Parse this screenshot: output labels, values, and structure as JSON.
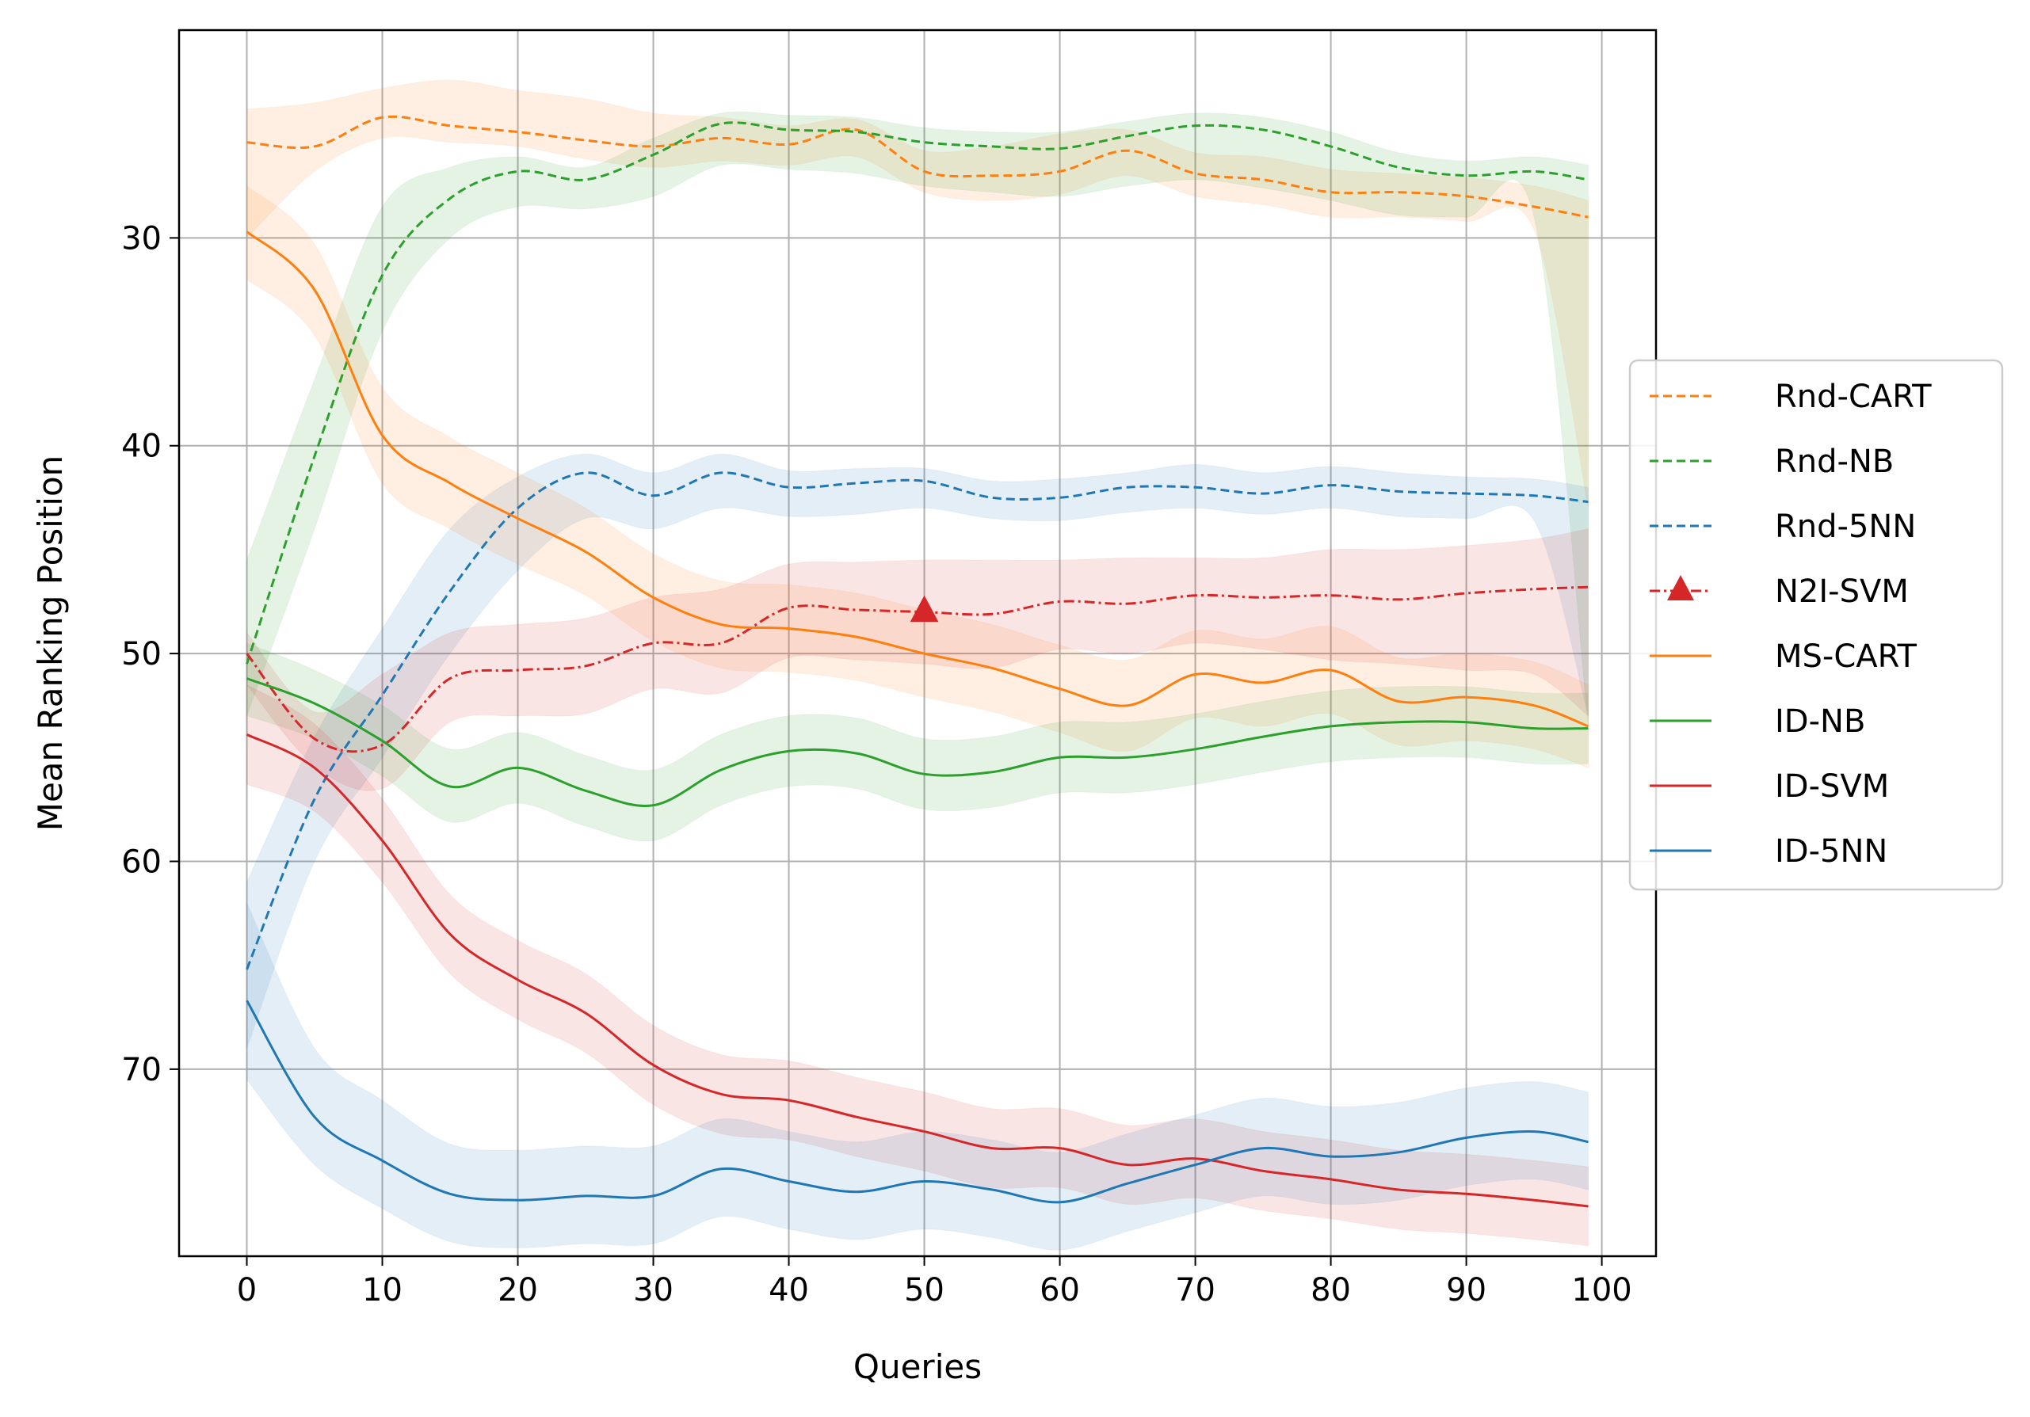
{
  "chart_data": {
    "type": "line",
    "title": "",
    "xlabel": "Queries",
    "ylabel": "Mean Ranking Position",
    "xlim": [
      -5,
      104
    ],
    "ylim": [
      79,
      20
    ],
    "y_inverted": true,
    "xticks": [
      0,
      10,
      20,
      30,
      40,
      50,
      60,
      70,
      80,
      90,
      100
    ],
    "yticks": [
      30,
      40,
      50,
      60,
      70
    ],
    "grid": true,
    "legend_position": "outside-right",
    "x": [
      0,
      5,
      10,
      15,
      20,
      25,
      30,
      35,
      40,
      45,
      50,
      55,
      60,
      65,
      70,
      75,
      80,
      85,
      90,
      95,
      99
    ],
    "series": [
      {
        "name": "Rnd-CART",
        "color": "#ff7f0e",
        "style": "dashed",
        "values": [
          25.4,
          25.6,
          24.2,
          24.6,
          24.9,
          25.3,
          25.6,
          25.2,
          25.5,
          24.8,
          26.8,
          27.0,
          26.8,
          25.8,
          26.9,
          27.2,
          27.8,
          27.8,
          28.0,
          28.5,
          29.0
        ],
        "band_lower": [
          23.8,
          23.5,
          22.8,
          22.4,
          22.9,
          23.3,
          24.0,
          24.2,
          24.6,
          24.3,
          25.8,
          25.6,
          25.0,
          24.8,
          25.9,
          26.1,
          26.7,
          26.9,
          27.1,
          27.5,
          28.2
        ],
        "band_upper": [
          30.0,
          26.8,
          25.2,
          25.4,
          25.6,
          26.2,
          26.6,
          26.3,
          26.5,
          26.1,
          27.8,
          28.2,
          27.9,
          27.0,
          28.0,
          28.4,
          29.0,
          29.0,
          29.2,
          29.6,
          43.0
        ]
      },
      {
        "name": "Rnd-NB",
        "color": "#2ca02c",
        "style": "dashed",
        "values": [
          50.5,
          40.5,
          31.8,
          28.1,
          26.8,
          27.2,
          26.0,
          24.5,
          24.8,
          24.9,
          25.4,
          25.6,
          25.7,
          25.1,
          24.6,
          24.8,
          25.6,
          26.6,
          27.0,
          26.8,
          27.2
        ],
        "band_lower": [
          45.5,
          36.8,
          28.5,
          26.6,
          26.1,
          26.6,
          25.2,
          24.0,
          24.1,
          24.2,
          24.7,
          24.9,
          24.9,
          24.4,
          24.0,
          24.2,
          24.9,
          25.9,
          26.3,
          26.1,
          26.5
        ],
        "band_upper": [
          53.0,
          44.0,
          34.5,
          30.0,
          28.5,
          28.6,
          28.0,
          26.5,
          26.7,
          26.9,
          27.5,
          27.8,
          28.0,
          27.5,
          27.2,
          27.6,
          28.2,
          28.9,
          29.0,
          29.0,
          53.5
        ]
      },
      {
        "name": "Rnd-5NN",
        "color": "#1f77b4",
        "style": "dashed",
        "values": [
          65.2,
          57.0,
          52.0,
          47.0,
          43.0,
          41.3,
          42.4,
          41.3,
          42.0,
          41.8,
          41.7,
          42.5,
          42.5,
          42.0,
          42.0,
          42.3,
          41.9,
          42.2,
          42.3,
          42.4,
          42.7
        ],
        "band_lower": [
          61.0,
          54.0,
          48.8,
          44.0,
          41.5,
          40.4,
          41.3,
          40.4,
          41.2,
          41.1,
          41.1,
          41.7,
          41.6,
          41.3,
          40.9,
          41.3,
          41.0,
          41.3,
          41.5,
          41.6,
          42.0
        ],
        "band_upper": [
          69.0,
          60.0,
          55.0,
          50.0,
          46.0,
          43.5,
          44.0,
          43.0,
          43.4,
          43.3,
          43.0,
          43.5,
          43.6,
          43.2,
          43.0,
          43.3,
          43.0,
          43.4,
          43.5,
          43.6,
          53.0
        ]
      },
      {
        "name": "N2I-SVM",
        "color": "#d62728",
        "style": "dashdot",
        "marker": "triangle",
        "marker_at": 50,
        "values": [
          50.0,
          54.1,
          54.4,
          51.2,
          50.8,
          50.6,
          49.5,
          49.5,
          47.8,
          47.9,
          48.0,
          48.1,
          47.5,
          47.6,
          47.2,
          47.3,
          47.2,
          47.4,
          47.1,
          46.9,
          46.8
        ],
        "band_lower": [
          49.0,
          52.8,
          51.0,
          49.0,
          48.6,
          48.3,
          47.3,
          46.9,
          45.7,
          45.6,
          45.5,
          45.5,
          45.5,
          45.4,
          45.4,
          45.4,
          45.0,
          45.0,
          44.8,
          44.5,
          44.0
        ],
        "band_upper": [
          51.5,
          55.4,
          56.5,
          53.3,
          53.0,
          52.9,
          51.7,
          51.9,
          50.2,
          50.3,
          50.5,
          50.7,
          49.8,
          50.0,
          49.5,
          49.8,
          50.3,
          50.5,
          50.8,
          51.0,
          53.0
        ]
      },
      {
        "name": "MS-CART",
        "color": "#ff7f0e",
        "style": "solid",
        "values": [
          29.7,
          32.5,
          39.5,
          41.8,
          43.5,
          45.1,
          47.3,
          48.6,
          48.8,
          49.2,
          50.0,
          50.7,
          51.7,
          52.5,
          51.0,
          51.4,
          50.8,
          52.3,
          52.1,
          52.5,
          53.5
        ],
        "band_lower": [
          27.5,
          30.3,
          37.2,
          39.6,
          41.3,
          43.0,
          45.2,
          46.5,
          46.7,
          47.1,
          47.9,
          48.6,
          49.6,
          50.3,
          48.9,
          49.3,
          48.7,
          50.2,
          50.0,
          50.4,
          51.5
        ],
        "band_upper": [
          32.0,
          34.7,
          41.8,
          44.0,
          45.7,
          47.2,
          49.4,
          50.7,
          50.9,
          51.3,
          52.1,
          52.8,
          53.8,
          54.7,
          53.1,
          53.5,
          52.9,
          54.4,
          54.2,
          54.6,
          55.5
        ]
      },
      {
        "name": "ID-NB",
        "color": "#2ca02c",
        "style": "solid",
        "values": [
          51.2,
          52.4,
          54.2,
          56.4,
          55.5,
          56.6,
          57.3,
          55.6,
          54.7,
          54.8,
          55.8,
          55.7,
          55.0,
          55.0,
          54.6,
          54.0,
          53.5,
          53.3,
          53.3,
          53.6,
          53.6
        ],
        "band_lower": [
          49.5,
          50.8,
          52.5,
          54.6,
          53.8,
          54.9,
          55.6,
          53.9,
          53.0,
          53.1,
          54.1,
          54.0,
          53.3,
          53.3,
          52.9,
          52.3,
          51.8,
          51.6,
          51.6,
          51.9,
          51.9
        ],
        "band_upper": [
          53.0,
          54.1,
          55.9,
          58.1,
          57.2,
          58.3,
          59.0,
          57.3,
          56.4,
          56.5,
          57.5,
          57.4,
          56.7,
          56.7,
          56.3,
          55.7,
          55.2,
          55.0,
          55.0,
          55.3,
          55.3
        ]
      },
      {
        "name": "ID-SVM",
        "color": "#d62728",
        "style": "solid",
        "values": [
          53.9,
          55.5,
          59.0,
          63.5,
          65.7,
          67.3,
          69.8,
          71.2,
          71.5,
          72.3,
          73.0,
          73.8,
          73.8,
          74.6,
          74.3,
          74.9,
          75.3,
          75.8,
          76.0,
          76.3,
          76.6
        ],
        "band_lower": [
          51.5,
          53.4,
          57.0,
          61.6,
          63.8,
          65.4,
          67.9,
          69.3,
          69.6,
          70.4,
          71.1,
          71.9,
          71.9,
          72.7,
          72.4,
          73.0,
          73.4,
          73.9,
          74.1,
          74.4,
          74.7
        ],
        "band_upper": [
          56.3,
          57.6,
          61.0,
          65.4,
          67.6,
          69.2,
          71.7,
          73.1,
          73.4,
          74.2,
          74.9,
          75.7,
          75.7,
          76.5,
          76.2,
          76.8,
          77.2,
          77.7,
          77.9,
          78.2,
          78.5
        ]
      },
      {
        "name": "ID-5NN",
        "color": "#1f77b4",
        "style": "solid",
        "values": [
          66.7,
          72.3,
          74.4,
          76.0,
          76.3,
          76.1,
          76.1,
          74.8,
          75.4,
          75.9,
          75.4,
          75.8,
          76.4,
          75.5,
          74.6,
          73.8,
          74.2,
          74.0,
          73.3,
          73.0,
          73.5
        ],
        "band_lower": [
          62.0,
          69.0,
          71.5,
          73.6,
          73.9,
          73.7,
          73.7,
          72.4,
          73.0,
          73.5,
          73.0,
          73.4,
          74.0,
          73.1,
          72.2,
          71.4,
          71.8,
          71.6,
          70.9,
          70.6,
          71.1
        ],
        "band_upper": [
          70.5,
          74.6,
          76.7,
          78.3,
          78.6,
          78.4,
          78.4,
          77.1,
          77.7,
          78.2,
          77.7,
          78.1,
          78.7,
          77.8,
          76.9,
          76.1,
          76.5,
          76.3,
          75.6,
          75.3,
          75.8
        ]
      }
    ]
  }
}
